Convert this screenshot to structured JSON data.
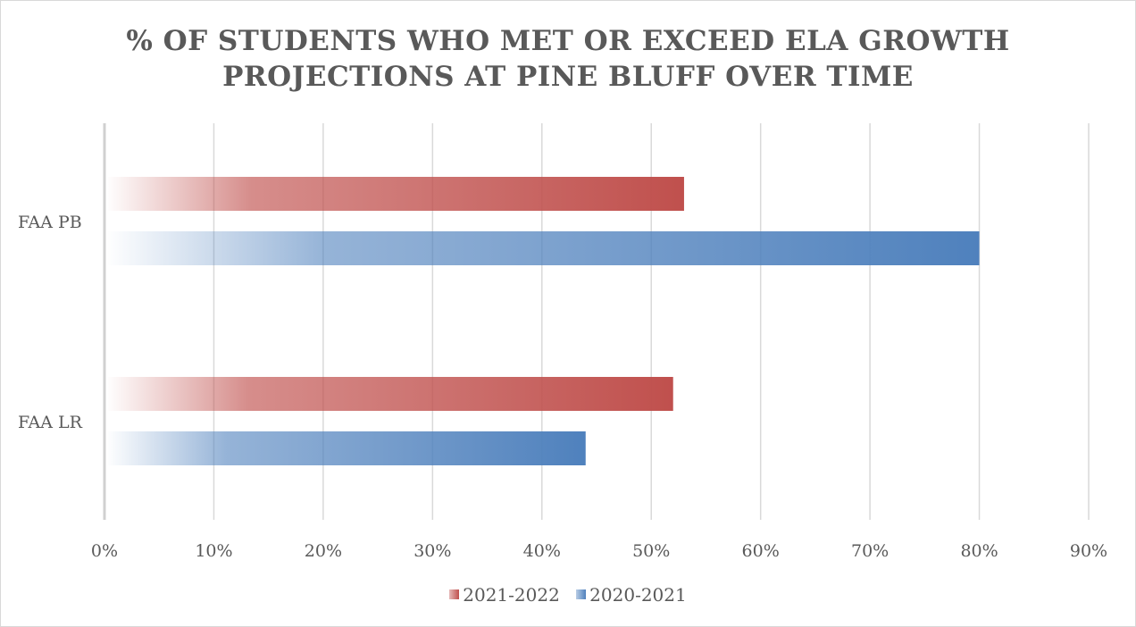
{
  "chart_data": {
    "type": "bar",
    "orientation": "horizontal",
    "title_lines": [
      "% OF STUDENTS WHO MET OR EXCEED ELA GROWTH",
      "PROJECTIONS AT PINE BLUFF OVER TIME"
    ],
    "categories": [
      "FAA PB",
      "FAA LR"
    ],
    "series": [
      {
        "name": "2021-2022",
        "color": "#c0504d",
        "values": [
          53,
          52
        ]
      },
      {
        "name": "2020-2021",
        "color": "#4f81bd",
        "values": [
          80,
          44
        ]
      }
    ],
    "x_ticks": [
      "0%",
      "10%",
      "20%",
      "30%",
      "40%",
      "50%",
      "60%",
      "70%",
      "80%",
      "90%"
    ],
    "xlim": [
      0,
      90
    ],
    "grid": true,
    "legend_position": "bottom"
  }
}
